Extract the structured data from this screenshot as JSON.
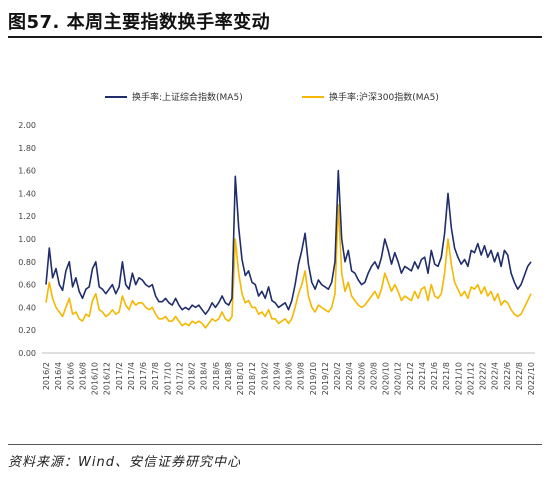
{
  "header": {
    "title": "图57. 本周主要指数换手率变动"
  },
  "footer": {
    "source": "资料来源：Wind、安信证券研究中心"
  },
  "colors": {
    "series1": "#1f2d6b",
    "series2": "#f5b700",
    "axis": "#bfbfbf"
  },
  "chart_data": {
    "type": "line",
    "ylim": [
      0,
      2
    ],
    "yticks": [
      "0.00",
      "0.20",
      "0.40",
      "0.60",
      "0.80",
      "1.00",
      "1.20",
      "1.40",
      "1.60",
      "1.80",
      "2.00"
    ],
    "xticks": [
      "2016/2",
      "2016/4",
      "2016/6",
      "2016/8",
      "2016/10",
      "2016/12",
      "2017/2",
      "2017/4",
      "2017/6",
      "2017/8",
      "2017/10",
      "2017/12",
      "2018/2",
      "2018/4",
      "2018/6",
      "2018/8",
      "2018/10",
      "2018/12",
      "2019/2",
      "2019/4",
      "2019/6",
      "2019/8",
      "2019/10",
      "2019/12",
      "2020/2",
      "2020/4",
      "2020/6",
      "2020/8",
      "2020/10",
      "2020/12",
      "2021/2",
      "2021/4",
      "2021/6",
      "2021/8",
      "2021/10",
      "2021/12",
      "2022/2",
      "2022/4",
      "2022/6",
      "2022/8",
      "2022/10"
    ],
    "legend_position": "top",
    "grid": false,
    "series": [
      {
        "name": "换手率:上证综合指数(MA5)",
        "values": [
          0.6,
          0.92,
          0.66,
          0.74,
          0.6,
          0.55,
          0.72,
          0.8,
          0.58,
          0.66,
          0.54,
          0.48,
          0.56,
          0.58,
          0.74,
          0.8,
          0.58,
          0.56,
          0.52,
          0.56,
          0.6,
          0.52,
          0.58,
          0.8,
          0.6,
          0.56,
          0.7,
          0.6,
          0.66,
          0.64,
          0.6,
          0.58,
          0.6,
          0.5,
          0.45,
          0.45,
          0.48,
          0.44,
          0.42,
          0.48,
          0.42,
          0.38,
          0.4,
          0.38,
          0.42,
          0.4,
          0.42,
          0.38,
          0.34,
          0.38,
          0.44,
          0.4,
          0.44,
          0.5,
          0.44,
          0.42,
          0.48,
          1.55,
          1.1,
          0.82,
          0.68,
          0.72,
          0.62,
          0.6,
          0.5,
          0.54,
          0.48,
          0.58,
          0.46,
          0.44,
          0.4,
          0.42,
          0.44,
          0.38,
          0.46,
          0.6,
          0.78,
          0.9,
          1.05,
          0.78,
          0.62,
          0.56,
          0.64,
          0.6,
          0.58,
          0.56,
          0.62,
          0.8,
          1.6,
          1.0,
          0.8,
          0.9,
          0.72,
          0.7,
          0.64,
          0.6,
          0.62,
          0.7,
          0.76,
          0.8,
          0.74,
          0.84,
          1.0,
          0.9,
          0.78,
          0.88,
          0.8,
          0.7,
          0.76,
          0.74,
          0.72,
          0.8,
          0.74,
          0.82,
          0.84,
          0.7,
          0.9,
          0.78,
          0.76,
          0.84,
          1.05,
          1.4,
          1.1,
          0.92,
          0.84,
          0.78,
          0.82,
          0.76,
          0.9,
          0.88,
          0.96,
          0.86,
          0.94,
          0.84,
          0.9,
          0.8,
          0.88,
          0.76,
          0.9,
          0.86,
          0.7,
          0.62,
          0.56,
          0.6,
          0.68,
          0.76,
          0.8
        ]
      },
      {
        "name": "换手率:沪深300指数(MA5)",
        "values": [
          0.44,
          0.62,
          0.48,
          0.4,
          0.36,
          0.32,
          0.4,
          0.48,
          0.34,
          0.36,
          0.3,
          0.28,
          0.34,
          0.32,
          0.46,
          0.52,
          0.38,
          0.36,
          0.32,
          0.34,
          0.38,
          0.34,
          0.36,
          0.5,
          0.42,
          0.38,
          0.46,
          0.42,
          0.44,
          0.44,
          0.4,
          0.38,
          0.4,
          0.34,
          0.3,
          0.3,
          0.32,
          0.28,
          0.28,
          0.32,
          0.28,
          0.24,
          0.26,
          0.24,
          0.28,
          0.26,
          0.28,
          0.26,
          0.22,
          0.26,
          0.3,
          0.28,
          0.3,
          0.36,
          0.3,
          0.28,
          0.32,
          1.0,
          0.7,
          0.52,
          0.44,
          0.46,
          0.4,
          0.4,
          0.34,
          0.36,
          0.32,
          0.38,
          0.3,
          0.3,
          0.26,
          0.28,
          0.3,
          0.26,
          0.3,
          0.4,
          0.52,
          0.6,
          0.72,
          0.5,
          0.4,
          0.36,
          0.42,
          0.4,
          0.38,
          0.36,
          0.4,
          0.52,
          1.3,
          0.7,
          0.54,
          0.62,
          0.5,
          0.46,
          0.42,
          0.4,
          0.42,
          0.46,
          0.5,
          0.54,
          0.48,
          0.56,
          0.7,
          0.62,
          0.54,
          0.6,
          0.54,
          0.46,
          0.5,
          0.48,
          0.46,
          0.54,
          0.48,
          0.56,
          0.58,
          0.46,
          0.6,
          0.5,
          0.48,
          0.52,
          0.7,
          1.0,
          0.78,
          0.62,
          0.56,
          0.5,
          0.54,
          0.48,
          0.58,
          0.56,
          0.6,
          0.52,
          0.58,
          0.5,
          0.54,
          0.46,
          0.52,
          0.42,
          0.46,
          0.44,
          0.38,
          0.34,
          0.32,
          0.34,
          0.4,
          0.46,
          0.52
        ]
      }
    ]
  }
}
